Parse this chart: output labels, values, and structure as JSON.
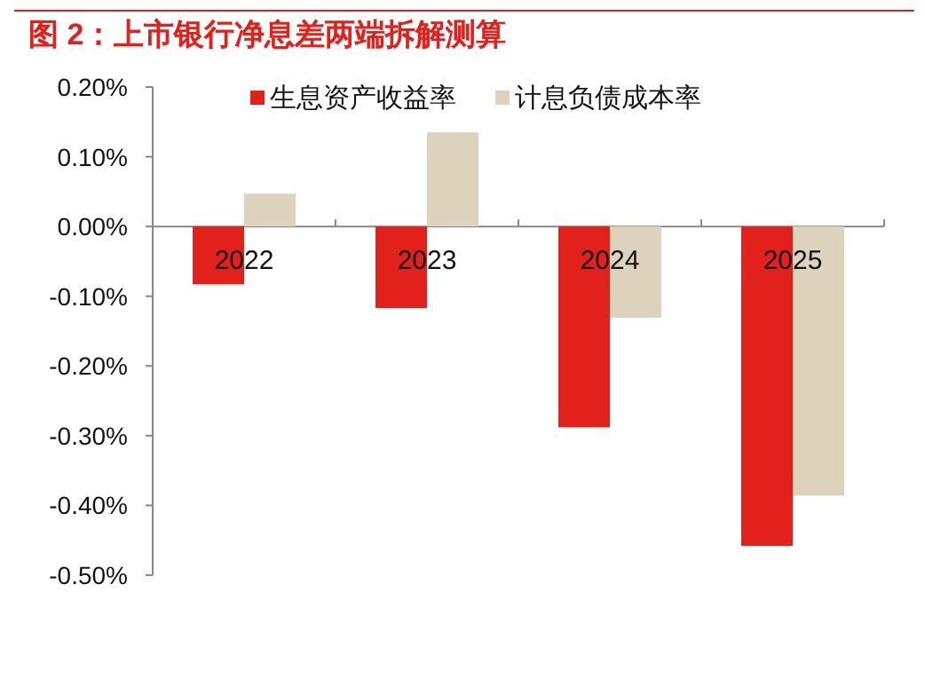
{
  "chart_data": {
    "type": "bar",
    "title": "图 2：上市银行净息差两端拆解测算",
    "categories": [
      "2022",
      "2023",
      "2024",
      "2025"
    ],
    "series": [
      {
        "name": "生息资产收益率",
        "color": "#e2211c",
        "values": [
          -0.083,
          -0.117,
          -0.288,
          -0.458
        ]
      },
      {
        "name": "计息负债成本率",
        "color": "#ddd3bc",
        "values": [
          0.047,
          0.135,
          -0.131,
          -0.386
        ]
      }
    ],
    "ylim": [
      -0.5,
      0.2
    ],
    "yticks": [
      {
        "value": 0.2,
        "label": "0.20%"
      },
      {
        "value": 0.1,
        "label": "0.10%"
      },
      {
        "value": 0,
        "label": "0.00%"
      },
      {
        "value": -0.1,
        "label": "-0.10%"
      },
      {
        "value": -0.2,
        "label": "-0.20%"
      },
      {
        "value": -0.3,
        "label": "-0.30%"
      },
      {
        "value": -0.4,
        "label": "-0.40%"
      },
      {
        "value": -0.5,
        "label": "-0.50%"
      }
    ],
    "grid": false,
    "legend": "top"
  }
}
